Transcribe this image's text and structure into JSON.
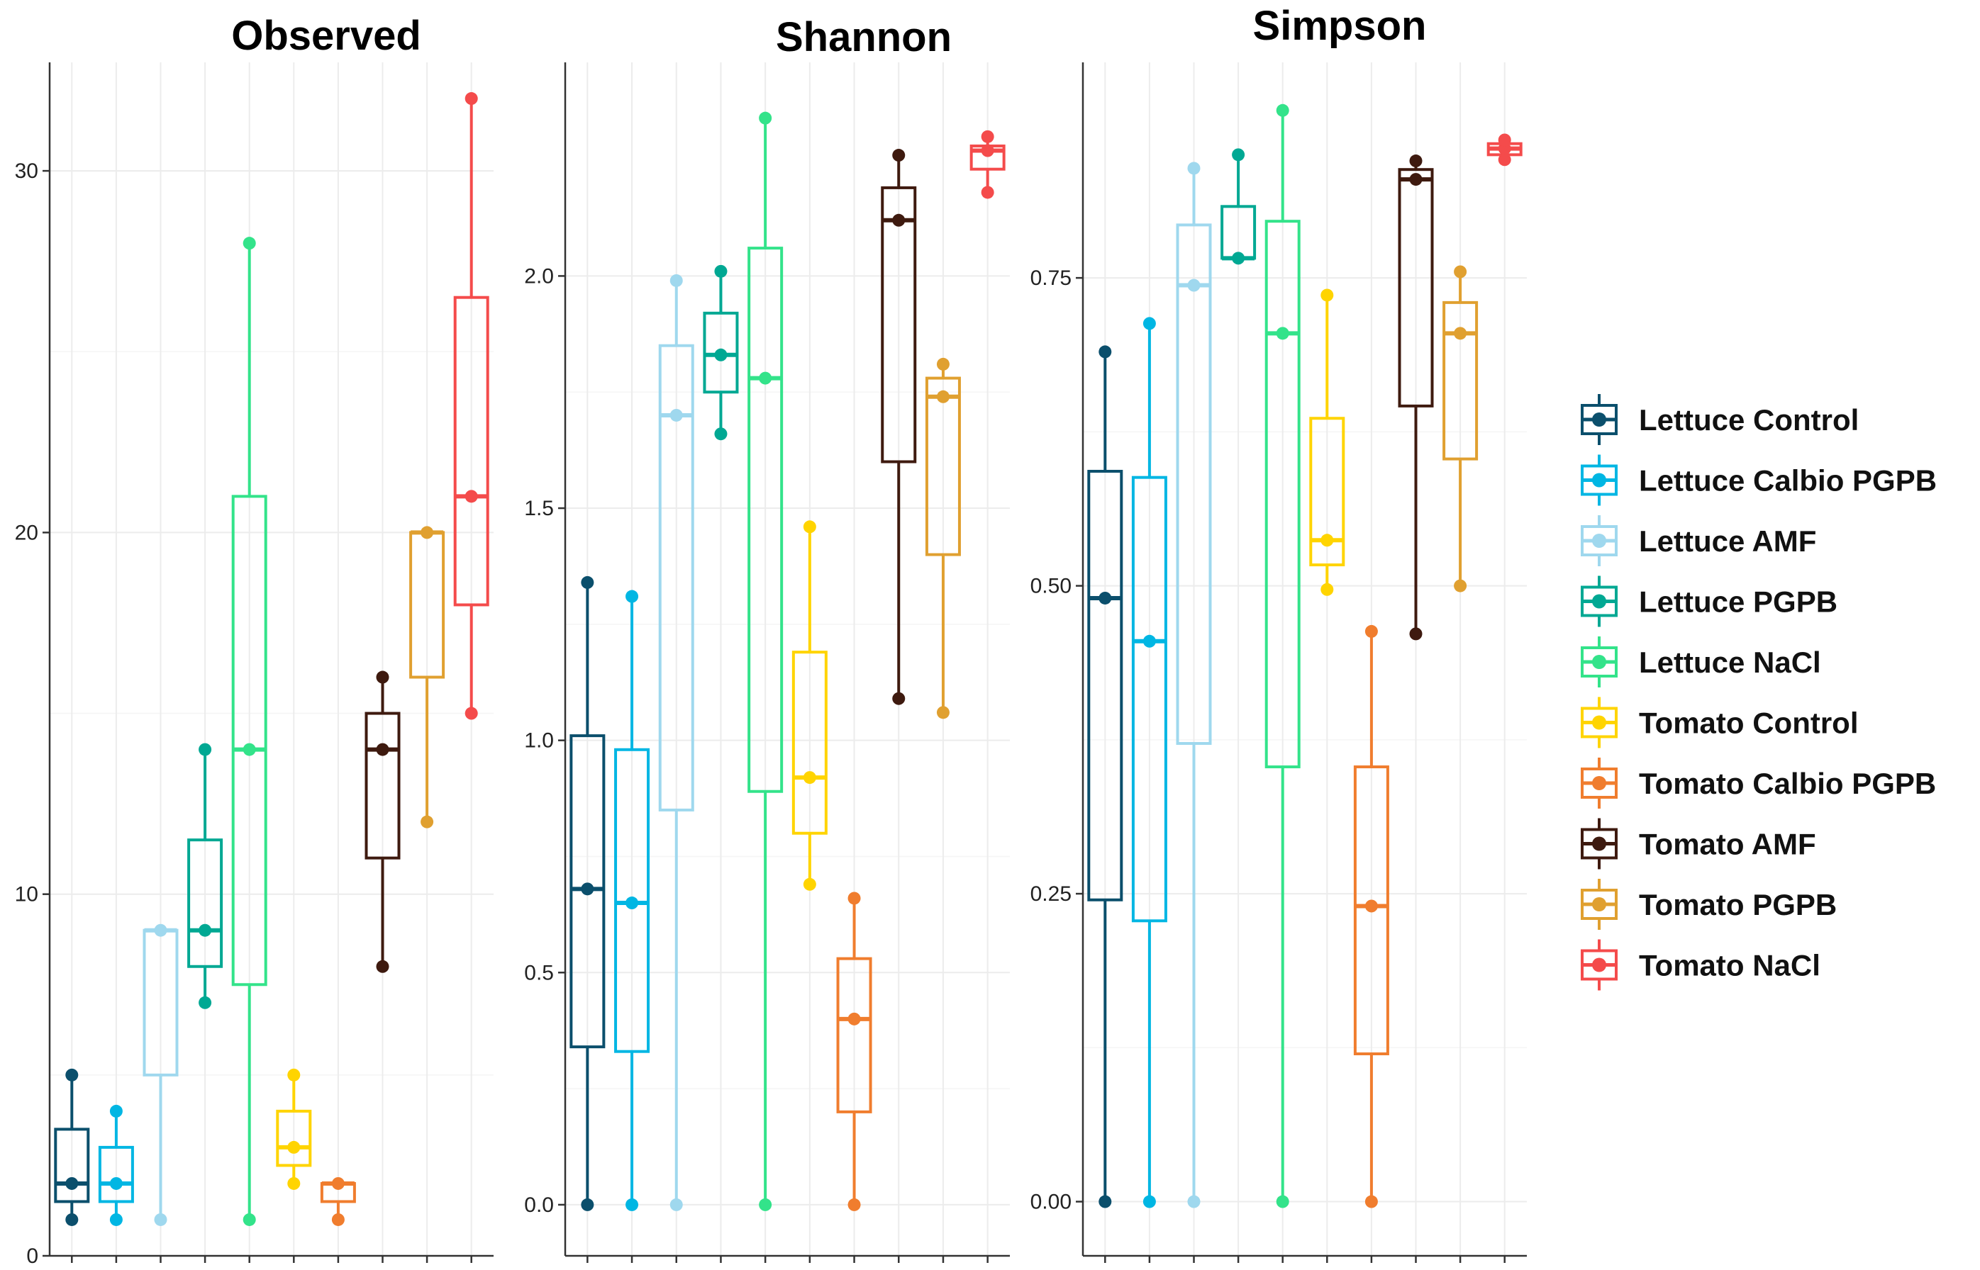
{
  "chart_data": [
    {
      "type": "box",
      "title": "Observed",
      "ylim": [
        0,
        33
      ],
      "yticks": [
        0,
        10,
        20,
        30
      ],
      "tick_labels": [
        "0",
        "10",
        "20",
        "30"
      ],
      "groups": [
        {
          "name": "Lettuce Control",
          "min": 1,
          "q1": 1.5,
          "median": 2,
          "q3": 3.5,
          "max": 5,
          "points": [
            1,
            2,
            5
          ]
        },
        {
          "name": "Lettuce Calbio PGPB",
          "min": 1,
          "q1": 1.5,
          "median": 2,
          "q3": 3,
          "max": 4,
          "points": [
            1,
            2,
            4
          ]
        },
        {
          "name": "Lettuce AMF",
          "min": 1,
          "q1": 5,
          "median": 9,
          "q3": 9,
          "max": 9,
          "points": [
            1,
            9
          ]
        },
        {
          "name": "Lettuce PGPB",
          "min": 7,
          "q1": 8,
          "median": 9,
          "q3": 11.5,
          "max": 14,
          "points": [
            7,
            9,
            14
          ]
        },
        {
          "name": "Lettuce NaCl",
          "min": 1,
          "q1": 7.5,
          "median": 14,
          "q3": 21,
          "max": 28,
          "points": [
            1,
            14,
            28
          ]
        },
        {
          "name": "Tomato Control",
          "min": 2,
          "q1": 2.5,
          "median": 3,
          "q3": 4,
          "max": 5,
          "points": [
            2,
            3,
            5
          ]
        },
        {
          "name": "Tomato Calbio PGPB",
          "min": 1,
          "q1": 1.5,
          "median": 2,
          "q3": 2,
          "max": 2,
          "points": [
            1,
            2
          ]
        },
        {
          "name": "Tomato AMF",
          "min": 8,
          "q1": 11,
          "median": 14,
          "q3": 15,
          "max": 16,
          "points": [
            8,
            14,
            16
          ]
        },
        {
          "name": "Tomato PGPB",
          "min": 12,
          "q1": 16,
          "median": 20,
          "q3": 20,
          "max": 20,
          "points": [
            12,
            20
          ]
        },
        {
          "name": "Tomato NaCl",
          "min": 15,
          "q1": 18,
          "median": 21,
          "q3": 26.5,
          "max": 32,
          "points": [
            15,
            21,
            32
          ]
        }
      ]
    },
    {
      "type": "box",
      "title": "Shannon",
      "ylim": [
        -0.11,
        2.46
      ],
      "yticks": [
        0,
        0.5,
        1.0,
        1.5,
        2.0
      ],
      "tick_labels": [
        "0.0",
        "0.5",
        "1.0",
        "1.5",
        "2.0"
      ],
      "groups": [
        {
          "name": "Lettuce Control",
          "min": 0,
          "q1": 0.34,
          "median": 0.68,
          "q3": 1.01,
          "max": 1.34,
          "points": [
            0,
            0.68,
            1.34
          ]
        },
        {
          "name": "Lettuce Calbio PGPB",
          "min": 0,
          "q1": 0.33,
          "median": 0.65,
          "q3": 0.98,
          "max": 1.31,
          "points": [
            0,
            0.65,
            1.31
          ]
        },
        {
          "name": "Lettuce AMF",
          "min": 0,
          "q1": 0.85,
          "median": 1.7,
          "q3": 1.85,
          "max": 1.99,
          "points": [
            0,
            1.7,
            1.99
          ]
        },
        {
          "name": "Lettuce PGPB",
          "min": 1.66,
          "q1": 1.75,
          "median": 1.83,
          "q3": 1.92,
          "max": 2.01,
          "points": [
            1.66,
            1.83,
            2.01
          ]
        },
        {
          "name": "Lettuce NaCl",
          "min": 0,
          "q1": 0.89,
          "median": 1.78,
          "q3": 2.06,
          "max": 2.34,
          "points": [
            0,
            1.78,
            2.34
          ]
        },
        {
          "name": "Tomato Control",
          "min": 0.69,
          "q1": 0.8,
          "median": 0.92,
          "q3": 1.19,
          "max": 1.46,
          "points": [
            0.69,
            0.92,
            1.46
          ]
        },
        {
          "name": "Tomato Calbio PGPB",
          "min": 0,
          "q1": 0.2,
          "median": 0.4,
          "q3": 0.53,
          "max": 0.66,
          "points": [
            0,
            0.4,
            0.66
          ]
        },
        {
          "name": "Tomato AMF",
          "min": 1.09,
          "q1": 1.6,
          "median": 2.12,
          "q3": 2.19,
          "max": 2.26,
          "points": [
            1.09,
            2.12,
            2.26
          ]
        },
        {
          "name": "Tomato PGPB",
          "min": 1.06,
          "q1": 1.4,
          "median": 1.74,
          "q3": 1.78,
          "max": 1.81,
          "points": [
            1.06,
            1.74,
            1.81
          ]
        },
        {
          "name": "Tomato NaCl",
          "min": 2.18,
          "q1": 2.23,
          "median": 2.27,
          "q3": 2.28,
          "max": 2.3,
          "points": [
            2.18,
            2.27,
            2.3
          ]
        }
      ]
    },
    {
      "type": "box",
      "title": "Simpson",
      "ylim": [
        -0.044,
        0.925
      ],
      "yticks": [
        0,
        0.25,
        0.5,
        0.75
      ],
      "tick_labels": [
        "0.00",
        "0.25",
        "0.50",
        "0.75"
      ],
      "groups": [
        {
          "name": "Lettuce Control",
          "min": 0,
          "q1": 0.245,
          "median": 0.49,
          "q3": 0.593,
          "max": 0.69,
          "points": [
            0,
            0.49,
            0.69
          ]
        },
        {
          "name": "Lettuce Calbio PGPB",
          "min": 0,
          "q1": 0.228,
          "median": 0.455,
          "q3": 0.588,
          "max": 0.713,
          "points": [
            0,
            0.455,
            0.713
          ]
        },
        {
          "name": "Lettuce AMF",
          "min": 0,
          "q1": 0.372,
          "median": 0.744,
          "q3": 0.793,
          "max": 0.839,
          "points": [
            0,
            0.744,
            0.839
          ]
        },
        {
          "name": "Lettuce PGPB",
          "min": 0.766,
          "q1": 0.766,
          "median": 0.766,
          "q3": 0.808,
          "max": 0.85,
          "points": [
            0.766,
            0.85
          ]
        },
        {
          "name": "Lettuce NaCl",
          "min": 0,
          "q1": 0.353,
          "median": 0.705,
          "q3": 0.796,
          "max": 0.886,
          "points": [
            0,
            0.705,
            0.886
          ]
        },
        {
          "name": "Tomato Control",
          "min": 0.497,
          "q1": 0.517,
          "median": 0.537,
          "q3": 0.636,
          "max": 0.736,
          "points": [
            0.497,
            0.537,
            0.736
          ]
        },
        {
          "name": "Tomato Calbio PGPB",
          "min": 0,
          "q1": 0.12,
          "median": 0.24,
          "q3": 0.353,
          "max": 0.463,
          "points": [
            0,
            0.24,
            0.463
          ]
        },
        {
          "name": "Tomato AMF",
          "min": 0.461,
          "q1": 0.646,
          "median": 0.83,
          "q3": 0.838,
          "max": 0.845,
          "points": [
            0.461,
            0.83,
            0.845
          ]
        },
        {
          "name": "Tomato PGPB",
          "min": 0.5,
          "q1": 0.603,
          "median": 0.705,
          "q3": 0.73,
          "max": 0.755,
          "points": [
            0.5,
            0.705,
            0.755
          ]
        },
        {
          "name": "Tomato NaCl",
          "min": 0.846,
          "q1": 0.85,
          "median": 0.855,
          "q3": 0.859,
          "max": 0.862,
          "points": [
            0.846,
            0.855,
            0.862
          ]
        }
      ]
    }
  ],
  "legend": {
    "position": "right",
    "entries": [
      {
        "label": "Lettuce Control",
        "color": "#0B4F6C"
      },
      {
        "label": "Lettuce Calbio PGPB",
        "color": "#00B6E3"
      },
      {
        "label": "Lettuce AMF",
        "color": "#9FD8EE"
      },
      {
        "label": "Lettuce PGPB",
        "color": "#00A893"
      },
      {
        "label": "Lettuce NaCl",
        "color": "#33E38A"
      },
      {
        "label": "Tomato Control",
        "color": "#FFD400"
      },
      {
        "label": "Tomato Calbio PGPB",
        "color": "#F07D2E"
      },
      {
        "label": "Tomato AMF",
        "color": "#3E1A0F"
      },
      {
        "label": "Tomato PGPB",
        "color": "#E0A030"
      },
      {
        "label": "Tomato NaCl",
        "color": "#F44B4B"
      }
    ]
  }
}
